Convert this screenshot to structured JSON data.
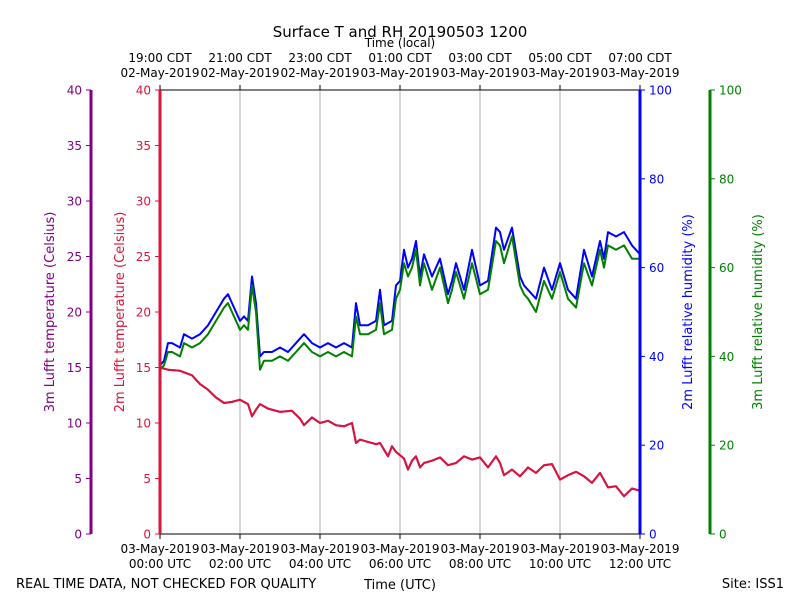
{
  "chart_data": {
    "type": "line",
    "title": "Surface T and RH 20190503 1200",
    "top_axis_title": "Time (local)",
    "xlabel": "Time (UTC)",
    "footer_left": "REAL TIME DATA, NOT CHECKED FOR QUALITY",
    "footer_right": "Site: ISS1",
    "x_range_hours_utc": [
      0,
      12
    ],
    "bottom_ticks": [
      {
        "hour": 0,
        "line1": "03-May-2019",
        "line2": "00:00 UTC"
      },
      {
        "hour": 2,
        "line1": "03-May-2019",
        "line2": "02:00 UTC"
      },
      {
        "hour": 4,
        "line1": "03-May-2019",
        "line2": "04:00 UTC"
      },
      {
        "hour": 6,
        "line1": "03-May-2019",
        "line2": "06:00 UTC"
      },
      {
        "hour": 8,
        "line1": "03-May-2019",
        "line2": "08:00 UTC"
      },
      {
        "hour": 10,
        "line1": "03-May-2019",
        "line2": "10:00 UTC"
      },
      {
        "hour": 12,
        "line1": "03-May-2019",
        "line2": "12:00 UTC"
      }
    ],
    "top_ticks": [
      {
        "hour": 0,
        "line1": "19:00 CDT",
        "line2": "02-May-2019"
      },
      {
        "hour": 2,
        "line1": "21:00 CDT",
        "line2": "02-May-2019"
      },
      {
        "hour": 4,
        "line1": "23:00 CDT",
        "line2": "02-May-2019"
      },
      {
        "hour": 6,
        "line1": "01:00 CDT",
        "line2": "03-May-2019"
      },
      {
        "hour": 8,
        "line1": "03:00 CDT",
        "line2": "03-May-2019"
      },
      {
        "hour": 10,
        "line1": "05:00 CDT",
        "line2": "03-May-2019"
      },
      {
        "hour": 12,
        "line1": "07:00 CDT",
        "line2": "03-May-2019"
      }
    ],
    "y_axes": [
      {
        "id": "t3",
        "label": "3m Lufft temperature (Celsius)",
        "color": "#800080",
        "range": [
          0,
          40
        ],
        "ticks": [
          0,
          5,
          10,
          15,
          20,
          25,
          30,
          35,
          40
        ],
        "side": "left-outer"
      },
      {
        "id": "t2",
        "label": "2m Lufft temperature (Celsius)",
        "color": "#dc143c",
        "range": [
          0,
          40
        ],
        "ticks": [
          0,
          5,
          10,
          15,
          20,
          25,
          30,
          35,
          40
        ],
        "side": "left-inner"
      },
      {
        "id": "rh2",
        "label": "2m Lufft relative humidity (%)",
        "color": "#0000ff",
        "range": [
          0,
          100
        ],
        "ticks": [
          0,
          20,
          40,
          60,
          80,
          100
        ],
        "side": "right-inner"
      },
      {
        "id": "rh3",
        "label": "3m Lufft relative humidity (%)",
        "color": "#008000",
        "range": [
          0,
          100
        ],
        "ticks": [
          0,
          20,
          40,
          60,
          80,
          100
        ],
        "side": "right-outer"
      }
    ],
    "series": [
      {
        "name": "3m Lufft temperature",
        "axis": "t3",
        "color": "#800080",
        "x": [
          0,
          0.2,
          0.5,
          0.8,
          1.0,
          1.2,
          1.4,
          1.6,
          1.8,
          2.0,
          2.2,
          2.3,
          2.4,
          2.5,
          2.7,
          3.0,
          3.3,
          3.5,
          3.6,
          3.8,
          4.0,
          4.2,
          4.4,
          4.6,
          4.8,
          4.9,
          5.0,
          5.2,
          5.4,
          5.5,
          5.7,
          5.8,
          5.9,
          6.0,
          6.1,
          6.2,
          6.3,
          6.4,
          6.5,
          6.6,
          6.8,
          7.0,
          7.2,
          7.4,
          7.6,
          7.8,
          8.0,
          8.2,
          8.4,
          8.5,
          8.6,
          8.8,
          9.0,
          9.2,
          9.4,
          9.6,
          9.8,
          10.0,
          10.2,
          10.4,
          10.6,
          10.8,
          11.0,
          11.2,
          11.4,
          11.6,
          11.8,
          12.0
        ],
        "y": [
          15.0,
          14.8,
          14.7,
          14.3,
          13.5,
          13.0,
          12.3,
          11.8,
          11.9,
          12.1,
          11.7,
          10.6,
          11.2,
          11.7,
          11.3,
          11.0,
          11.1,
          10.4,
          9.8,
          10.5,
          10.0,
          10.2,
          9.8,
          9.7,
          10.0,
          8.2,
          8.5,
          8.3,
          8.1,
          8.2,
          7.0,
          7.9,
          7.4,
          7.1,
          6.8,
          5.8,
          6.6,
          7.0,
          6.0,
          6.4,
          6.6,
          6.9,
          6.2,
          6.4,
          7.0,
          6.7,
          6.9,
          6.0,
          7.0,
          6.4,
          5.3,
          5.8,
          5.2,
          6.0,
          5.5,
          6.2,
          6.3,
          4.9,
          5.3,
          5.6,
          5.2,
          4.6,
          5.5,
          4.2,
          4.3,
          3.4,
          4.1,
          3.9
        ]
      },
      {
        "name": "2m Lufft temperature",
        "axis": "t2",
        "color": "#dc143c",
        "x": [
          0,
          0.2,
          0.5,
          0.8,
          1.0,
          1.2,
          1.4,
          1.6,
          1.8,
          2.0,
          2.2,
          2.3,
          2.4,
          2.5,
          2.7,
          3.0,
          3.3,
          3.5,
          3.6,
          3.8,
          4.0,
          4.2,
          4.4,
          4.6,
          4.8,
          4.9,
          5.0,
          5.2,
          5.4,
          5.5,
          5.7,
          5.8,
          5.9,
          6.0,
          6.1,
          6.2,
          6.3,
          6.4,
          6.5,
          6.6,
          6.8,
          7.0,
          7.2,
          7.4,
          7.6,
          7.8,
          8.0,
          8.2,
          8.4,
          8.5,
          8.6,
          8.8,
          9.0,
          9.2,
          9.4,
          9.6,
          9.8,
          10.0,
          10.2,
          10.4,
          10.6,
          10.8,
          11.0,
          11.2,
          11.4,
          11.6,
          11.8,
          12.0
        ],
        "y": [
          15.0,
          14.8,
          14.7,
          14.3,
          13.5,
          13.0,
          12.3,
          11.8,
          11.9,
          12.1,
          11.7,
          10.6,
          11.2,
          11.7,
          11.3,
          11.0,
          11.1,
          10.4,
          9.8,
          10.5,
          10.0,
          10.2,
          9.8,
          9.7,
          10.0,
          8.2,
          8.5,
          8.3,
          8.1,
          8.2,
          7.0,
          7.9,
          7.4,
          7.1,
          6.8,
          5.8,
          6.6,
          7.0,
          6.0,
          6.4,
          6.6,
          6.9,
          6.2,
          6.4,
          7.0,
          6.7,
          6.9,
          6.0,
          7.0,
          6.4,
          5.3,
          5.8,
          5.2,
          6.0,
          5.5,
          6.2,
          6.3,
          4.9,
          5.3,
          5.6,
          5.2,
          4.6,
          5.5,
          4.2,
          4.3,
          3.4,
          4.1,
          3.9
        ]
      },
      {
        "name": "2m Lufft relative humidity",
        "axis": "rh2",
        "color": "#0000ff",
        "x": [
          0,
          0.1,
          0.2,
          0.3,
          0.5,
          0.6,
          0.8,
          1.0,
          1.2,
          1.4,
          1.6,
          1.7,
          1.8,
          2.0,
          2.1,
          2.2,
          2.3,
          2.4,
          2.5,
          2.6,
          2.8,
          3.0,
          3.2,
          3.4,
          3.6,
          3.8,
          4.0,
          4.2,
          4.4,
          4.6,
          4.8,
          4.9,
          5.0,
          5.2,
          5.4,
          5.5,
          5.6,
          5.8,
          5.9,
          6.0,
          6.1,
          6.2,
          6.3,
          6.4,
          6.5,
          6.6,
          6.8,
          7.0,
          7.2,
          7.3,
          7.4,
          7.6,
          7.8,
          8.0,
          8.2,
          8.4,
          8.5,
          8.6,
          8.8,
          9.0,
          9.1,
          9.2,
          9.4,
          9.6,
          9.8,
          10.0,
          10.2,
          10.4,
          10.6,
          10.8,
          11.0,
          11.1,
          11.2,
          11.4,
          11.6,
          11.8,
          12.0
        ],
        "y": [
          38,
          39,
          43,
          43,
          42,
          45,
          44,
          45,
          47,
          50,
          53,
          54,
          52,
          48,
          49,
          48,
          58,
          52,
          40,
          41,
          41,
          42,
          41,
          43,
          45,
          43,
          42,
          43,
          42,
          43,
          42,
          52,
          47,
          47,
          48,
          55,
          47,
          48,
          56,
          57,
          64,
          60,
          62,
          66,
          58,
          63,
          58,
          62,
          54,
          57,
          61,
          55,
          64,
          56,
          57,
          69,
          68,
          64,
          69,
          58,
          56,
          55,
          53,
          60,
          55,
          61,
          55,
          53,
          64,
          58,
          66,
          62,
          68,
          67,
          68,
          65,
          63
        ]
      },
      {
        "name": "3m Lufft relative humidity",
        "axis": "rh3",
        "color": "#008000",
        "x": [
          0,
          0.1,
          0.2,
          0.3,
          0.5,
          0.6,
          0.8,
          1.0,
          1.2,
          1.4,
          1.6,
          1.7,
          1.8,
          2.0,
          2.1,
          2.2,
          2.3,
          2.4,
          2.5,
          2.6,
          2.8,
          3.0,
          3.2,
          3.4,
          3.6,
          3.8,
          4.0,
          4.2,
          4.4,
          4.6,
          4.8,
          4.9,
          5.0,
          5.2,
          5.4,
          5.5,
          5.6,
          5.8,
          5.9,
          6.0,
          6.1,
          6.2,
          6.3,
          6.4,
          6.5,
          6.6,
          6.8,
          7.0,
          7.2,
          7.3,
          7.4,
          7.6,
          7.8,
          8.0,
          8.2,
          8.4,
          8.5,
          8.6,
          8.8,
          9.0,
          9.1,
          9.2,
          9.4,
          9.6,
          9.8,
          10.0,
          10.2,
          10.4,
          10.6,
          10.8,
          11.0,
          11.1,
          11.2,
          11.4,
          11.6,
          11.8,
          12.0
        ],
        "y": [
          37,
          38,
          41,
          41,
          40,
          43,
          42,
          43,
          45,
          48,
          51,
          52,
          50,
          46,
          47,
          46,
          56,
          50,
          37,
          39,
          39,
          40,
          39,
          41,
          43,
          41,
          40,
          41,
          40,
          41,
          40,
          49,
          45,
          45,
          46,
          52,
          45,
          46,
          53,
          55,
          61,
          58,
          60,
          64,
          56,
          61,
          55,
          60,
          52,
          55,
          59,
          53,
          61,
          54,
          55,
          66,
          65,
          61,
          67,
          56,
          54,
          53,
          50,
          57,
          53,
          59,
          53,
          51,
          61,
          56,
          64,
          60,
          65,
          64,
          65,
          62,
          62
        ]
      }
    ]
  }
}
